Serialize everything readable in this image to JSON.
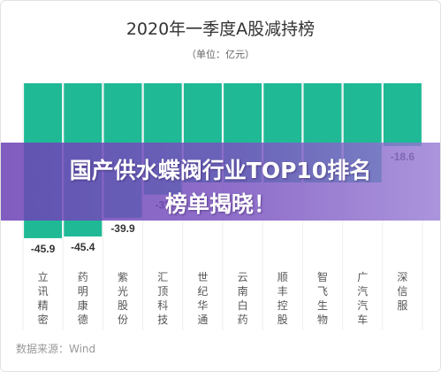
{
  "chart_data": {
    "type": "bar",
    "title": "2020年一季度A股减持榜",
    "subtitle": "（单位：亿元）",
    "categories": [
      "立讯精密",
      "药明康德",
      "紫光股份",
      "汇顶科技",
      "世纪华通",
      "云南白药",
      "顺丰控股",
      "智飞生物",
      "广汽汽车",
      "深信服"
    ],
    "values": [
      -45.9,
      -45.4,
      -39.9,
      -33,
      null,
      null,
      null,
      null,
      null,
      -18.6
    ],
    "data_labels": [
      "-45.9",
      "-45.4",
      "-39.9",
      "-33",
      "",
      "",
      "",
      "",
      "",
      "-18.6"
    ],
    "ylim": [
      -50,
      0
    ],
    "bar_color": "#1fb996",
    "grid": "vertical category separators"
  },
  "source": "数据来源：Wind",
  "banner": {
    "line1": "国产供水蝶阀行业TOP10排名",
    "line2": "榜单揭晓！"
  }
}
